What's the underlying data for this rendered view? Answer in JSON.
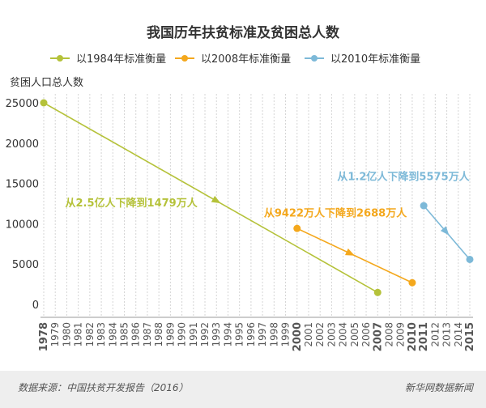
{
  "footer": {
    "source": "数据来源：中国扶贫开发报告（2016）",
    "brand": "新华网数据新闻"
  },
  "chart_data": {
    "type": "line",
    "title": "我国历年扶贫标准及贫困总人数",
    "ylabel": "贫困人口总人数",
    "xlabel": "",
    "ylim": [
      0,
      25000
    ],
    "yticks": [
      0,
      5000,
      10000,
      15000,
      20000,
      25000
    ],
    "grid": "vertical",
    "legend_position": "top",
    "x": [
      "1978",
      "1979",
      "1980",
      "1981",
      "1982",
      "1983",
      "1984",
      "1985",
      "1986",
      "1987",
      "1988",
      "1989",
      "1990",
      "1991",
      "1992",
      "1993",
      "1994",
      "1995",
      "1996",
      "1997",
      "1998",
      "1999",
      "2000",
      "2001",
      "2002",
      "2003",
      "2004",
      "2005",
      "2006",
      "2007",
      "2008",
      "2009",
      "2010",
      "2011",
      "2012",
      "2013",
      "2014",
      "2015"
    ],
    "series": [
      {
        "name": "以1984年标准衡量",
        "color": "#b5c23a",
        "x": [
          "1978",
          "2007"
        ],
        "values": [
          25000,
          1479
        ]
      },
      {
        "name": "以2008年标准衡量",
        "color": "#f4a81d",
        "x": [
          "2000",
          "2010"
        ],
        "values": [
          9422,
          2688
        ]
      },
      {
        "name": "以2010年标准衡量",
        "color": "#7db9d8",
        "x": [
          "2011",
          "2015"
        ],
        "values": [
          12238,
          5575
        ]
      }
    ],
    "annotations": [
      {
        "text": "从2.5亿人下降到1479万人",
        "series": 0,
        "color": "#b5c23a"
      },
      {
        "text": "从9422万人下降到2688万人",
        "series": 1,
        "color": "#f4a81d"
      },
      {
        "text": "从1.2亿人下降到5575万人",
        "series": 2,
        "color": "#7db9d8"
      }
    ],
    "highlight_x": [
      {
        "label": "1978",
        "color": "#b5c23a"
      },
      {
        "label": "2000",
        "color": "#f4a81d"
      },
      {
        "label": "2007",
        "color": "#b5c23a"
      },
      {
        "label": "2010",
        "color": "#f4a81d"
      },
      {
        "label": "2011",
        "color": "#7db9d8"
      },
      {
        "label": "2015",
        "color": "#7db9d8"
      }
    ]
  }
}
